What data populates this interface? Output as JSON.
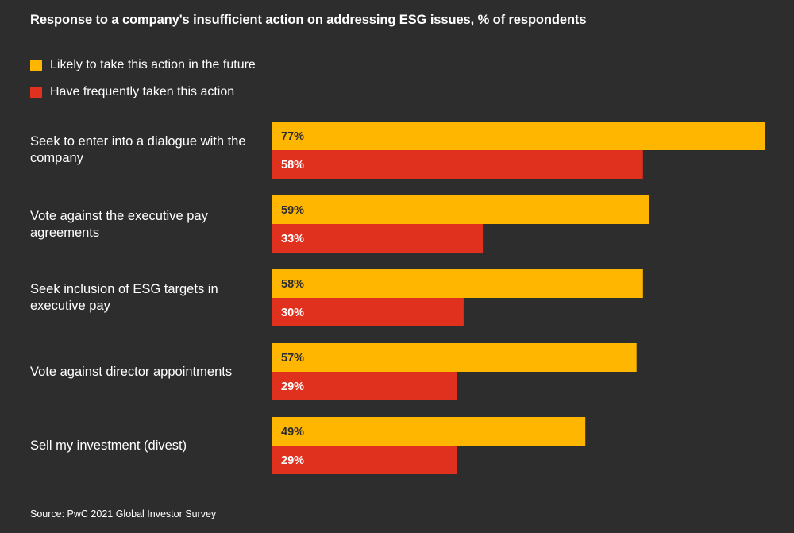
{
  "title": "Response to a company's insufficient action on addressing ESG issues, % of respondents",
  "source": "Source: PwC 2021 Global Investor Survey",
  "colors": {
    "background": "#2d2d2d",
    "future": "#ffb600",
    "taken": "#e0301e",
    "future_label": "#2d2d2d",
    "taken_label": "#ffffff"
  },
  "chart_data": {
    "type": "bar",
    "orientation": "horizontal",
    "title": "Response to a company's insufficient action on addressing ESG issues, % of respondents",
    "categories": [
      "Seek to enter into a dialogue with the company",
      "Vote against the executive pay agreements",
      "Seek inclusion of ESG targets in executive pay",
      "Vote against director appointments",
      "Sell my investment (divest)"
    ],
    "series": [
      {
        "name": "Likely to take this action in the future",
        "values": [
          77,
          59,
          58,
          57,
          49
        ],
        "labels": [
          "77%",
          "59%",
          "58%",
          "57%",
          "49%"
        ]
      },
      {
        "name": "Have frequently taken this action",
        "values": [
          58,
          33,
          30,
          29,
          29
        ],
        "labels": [
          "58%",
          "33%",
          "30%",
          "29%",
          "29%"
        ]
      }
    ],
    "xlim": [
      0,
      77
    ],
    "legend_position": "top-left",
    "grid": false
  }
}
